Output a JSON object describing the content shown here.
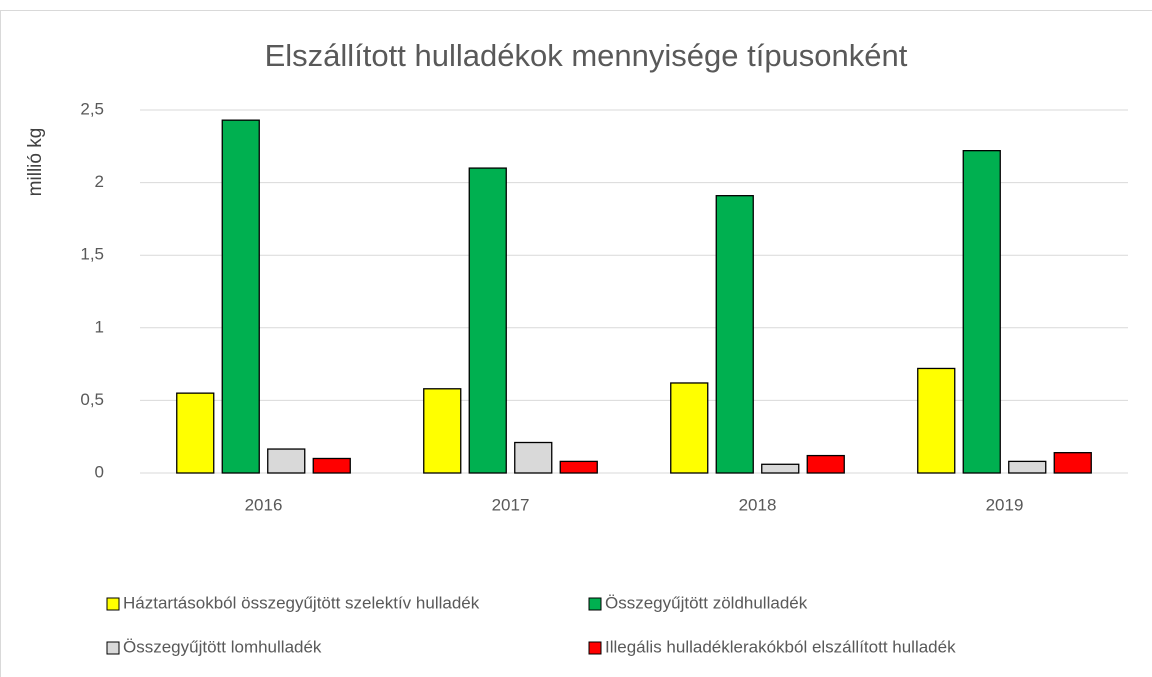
{
  "chart_data": {
    "type": "bar",
    "title": "Elszállított hulladékok mennyisége típusonként",
    "y_label": "millió kg",
    "categories": [
      "2016",
      "2017",
      "2018",
      "2019"
    ],
    "series": [
      {
        "name": "Háztartásokból összegyűjtött szelektív hulladék",
        "color": "#ffff00",
        "values": [
          0.55,
          0.58,
          0.62,
          0.72
        ]
      },
      {
        "name": "Összegyűjtött zöldhulladék",
        "color": "#00b050",
        "values": [
          2.43,
          2.1,
          1.91,
          2.22
        ]
      },
      {
        "name": "Összegyűjtött lomhulladék",
        "color": "#d9d9d9",
        "values": [
          0.165,
          0.21,
          0.06,
          0.08
        ]
      },
      {
        "name": "Illegális hulladéklerakókból elszállított hulladék",
        "color": "#ff0000",
        "values": [
          0.1,
          0.08,
          0.12,
          0.14
        ]
      }
    ],
    "ylim": [
      0,
      2.5
    ],
    "yticks": [
      0,
      {
        "value": 0.5,
        "label": "0,5"
      },
      1,
      {
        "value": 1.5,
        "label": "1,5"
      },
      2,
      {
        "value": 2.5,
        "label": "2,5"
      }
    ],
    "grid": true,
    "legend": "bottom"
  }
}
